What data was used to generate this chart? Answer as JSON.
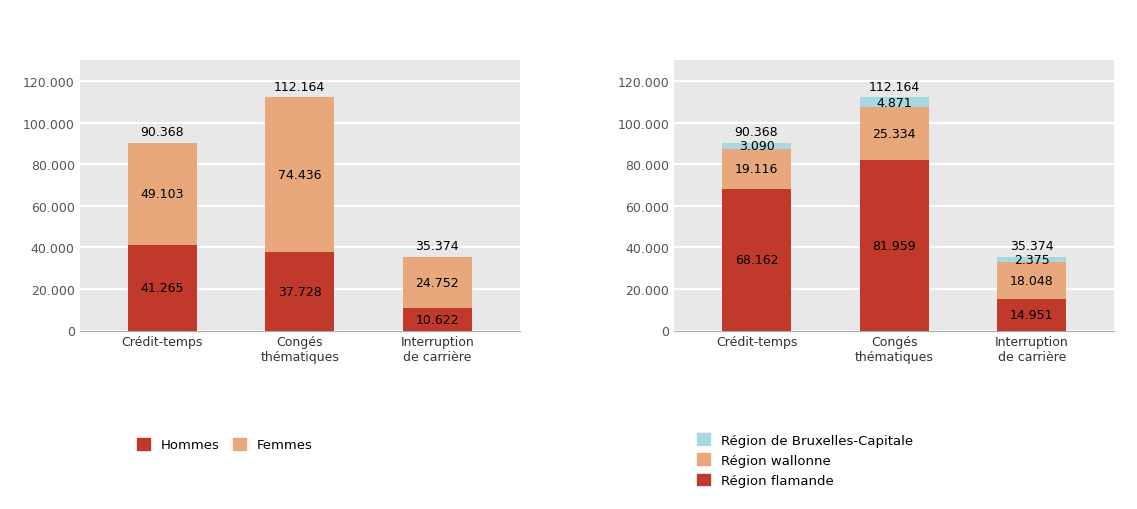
{
  "categories_display": [
    "Crédit-temps",
    "Congés\nthématiques",
    "Interruption\nde carrière"
  ],
  "left_chart": {
    "hommes": [
      41265,
      37728,
      10622
    ],
    "femmes": [
      49103,
      74436,
      24752
    ],
    "totals": [
      90368,
      112164,
      35374
    ],
    "color_hommes": "#c0392b",
    "color_femmes": "#e8a87c",
    "legend": [
      "Hommes",
      "Femmes"
    ]
  },
  "right_chart": {
    "flamande": [
      68162,
      81959,
      14951
    ],
    "wallonne": [
      19116,
      25334,
      18048
    ],
    "bruxelles": [
      3090,
      4871,
      2375
    ],
    "totals": [
      90368,
      112164,
      35374
    ],
    "color_flamande": "#c0392b",
    "color_wallonne": "#e8a87c",
    "color_bruxelles": "#a8d8e0",
    "legend": [
      "Région de Bruxelles-Capitale",
      "Région wallonne",
      "Région flamande"
    ]
  },
  "ylim": [
    0,
    130000
  ],
  "yticks": [
    0,
    20000,
    40000,
    60000,
    80000,
    100000,
    120000
  ],
  "ytick_labels": [
    "0",
    "20.000",
    "40.000",
    "60.000",
    "80.000",
    "100.000",
    "120.000"
  ],
  "plot_bg": "#e8e8e8",
  "bar_width": 0.5,
  "annotation_fontsize": 9,
  "tick_fontsize": 9,
  "legend_fontsize": 9.5
}
